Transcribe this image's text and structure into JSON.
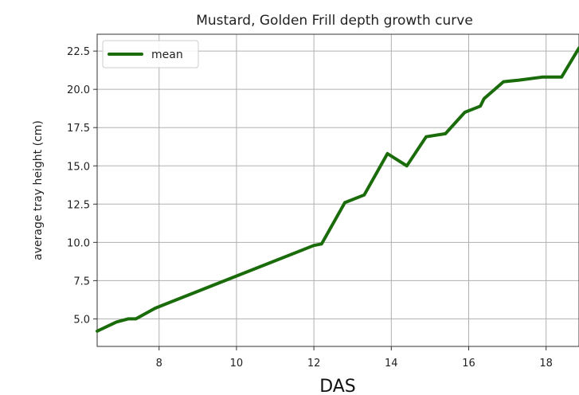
{
  "chart_data": {
    "type": "line",
    "title": "Mustard, Golden Frill depth growth curve",
    "xlabel": "DAS",
    "ylabel": "average tray height (cm)",
    "xlim": [
      6.4,
      18.85
    ],
    "ylim": [
      3.2,
      23.6
    ],
    "xticks": [
      8,
      10,
      12,
      14,
      16,
      18
    ],
    "yticks": [
      5.0,
      7.5,
      10.0,
      12.5,
      15.0,
      17.5,
      20.0,
      22.5
    ],
    "xtick_labels": [
      "8",
      "10",
      "12",
      "14",
      "16",
      "18"
    ],
    "ytick_labels": [
      "5.0",
      "7.5",
      "10.0",
      "12.5",
      "15.0",
      "17.5",
      "20.0",
      "22.5"
    ],
    "grid": true,
    "legend": {
      "position": "upper-left",
      "entries": [
        "mean"
      ]
    },
    "series": [
      {
        "name": "mean",
        "color": "#1a6b0a",
        "x": [
          6.4,
          6.9,
          7.2,
          7.4,
          7.9,
          8.1,
          12.0,
          12.2,
          12.8,
          13.3,
          13.9,
          14.4,
          14.9,
          15.4,
          15.9,
          16.3,
          16.4,
          16.9,
          17.3,
          17.9,
          18.4,
          18.85
        ],
        "y": [
          4.2,
          4.8,
          5.0,
          5.0,
          5.7,
          5.9,
          9.8,
          9.9,
          12.6,
          13.1,
          15.8,
          15.0,
          16.9,
          17.1,
          18.5,
          18.9,
          19.4,
          20.5,
          20.6,
          20.8,
          20.8,
          22.7
        ]
      }
    ]
  }
}
